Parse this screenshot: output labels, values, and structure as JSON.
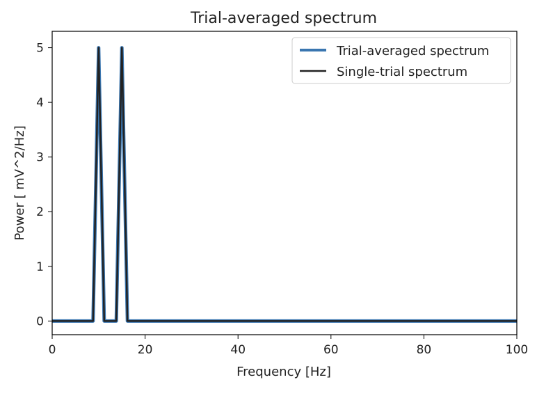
{
  "chart_data": {
    "type": "line",
    "title": "Trial-averaged spectrum",
    "xlabel": "Frequency [Hz]",
    "ylabel": "Power [ mV^2/Hz]",
    "xlim": [
      0,
      100
    ],
    "ylim": [
      -0.25,
      5.3
    ],
    "xticks": [
      0,
      20,
      40,
      60,
      80,
      100
    ],
    "xtick_labels": [
      "0",
      "20",
      "40",
      "60",
      "80",
      "100"
    ],
    "yticks": [
      0,
      1,
      2,
      3,
      4,
      5
    ],
    "ytick_labels": [
      "0",
      "1",
      "2",
      "3",
      "4",
      "5"
    ],
    "grid": false,
    "legend_position": "top-right",
    "series": [
      {
        "name": "Trial-averaged spectrum",
        "color": "#3a76b0",
        "x": [
          0,
          8.8,
          10,
          11.2,
          13.8,
          15,
          16.2,
          100
        ],
        "y": [
          0,
          0,
          5.0,
          0,
          0,
          5.0,
          0,
          0
        ]
      },
      {
        "name": "Single-trial spectrum",
        "color": "#222222",
        "x": [
          0,
          8.8,
          10,
          11.2,
          13.8,
          15,
          16.2,
          100
        ],
        "y": [
          0,
          0,
          5.0,
          0,
          0,
          5.0,
          0,
          0
        ]
      }
    ]
  }
}
